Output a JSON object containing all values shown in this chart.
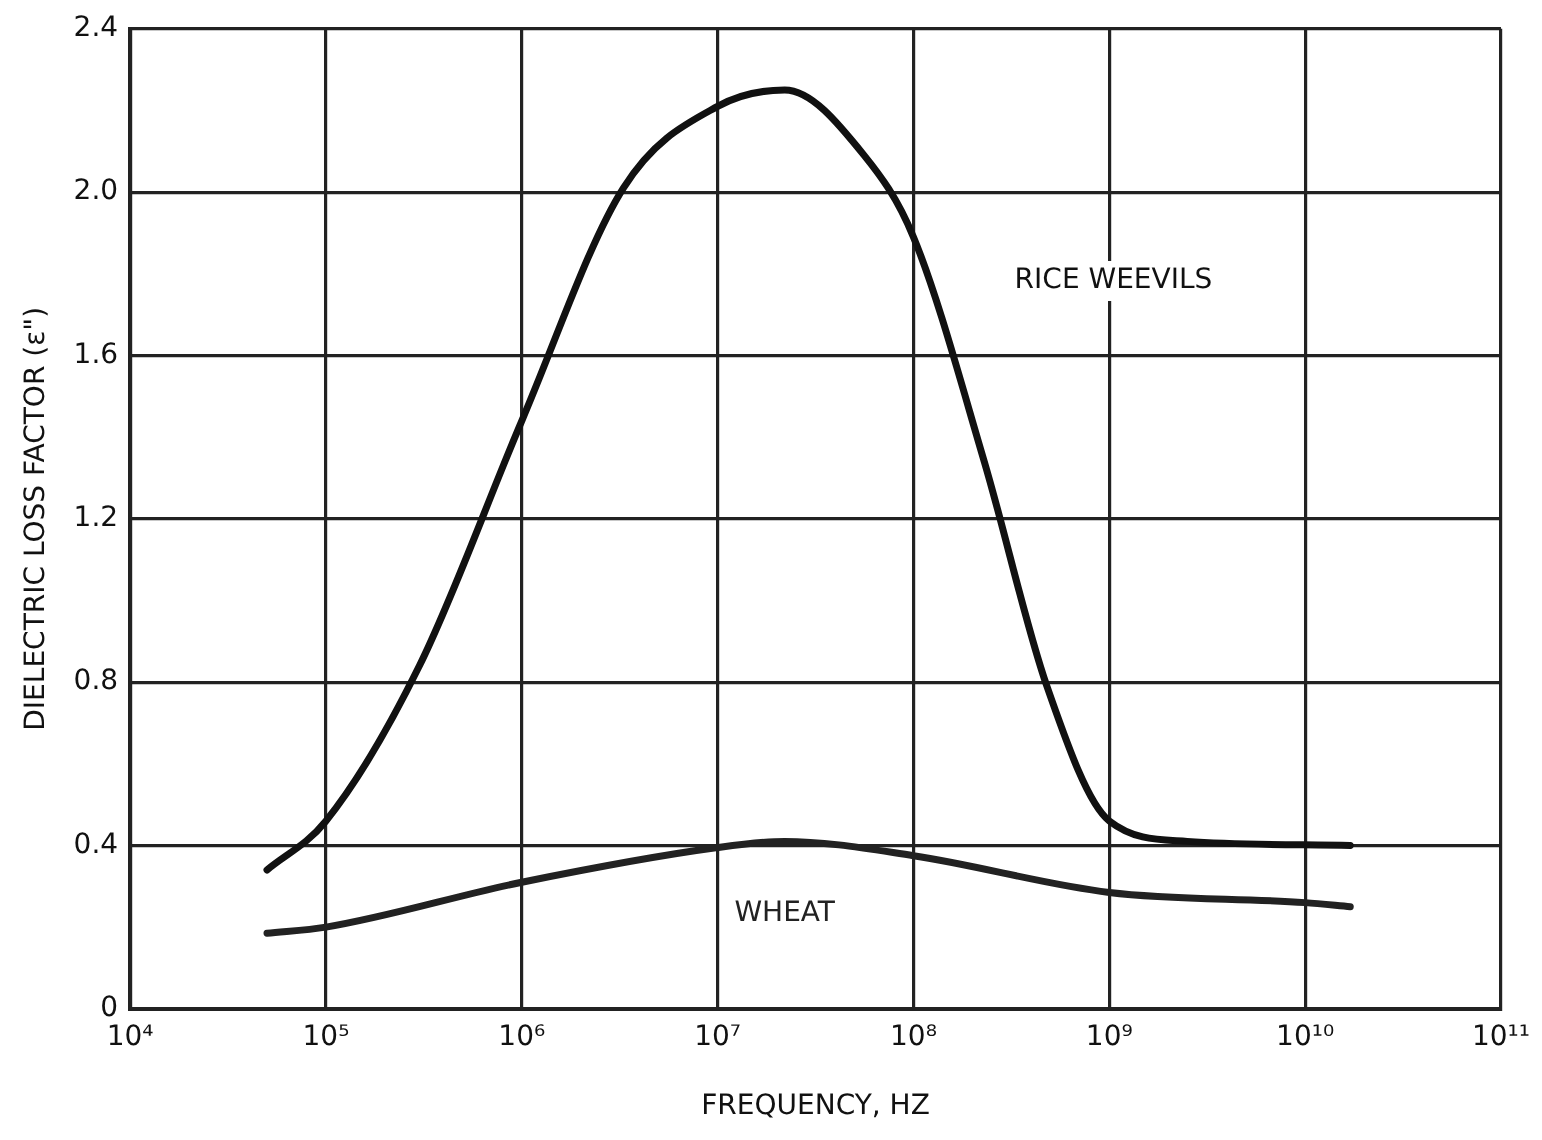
{
  "chart_data": {
    "type": "line",
    "xlabel": "FREQUENCY, HZ",
    "ylabel": "DIELECTRIC LOSS FACTOR (ε\")",
    "log": "x",
    "grid": true,
    "legend": false,
    "marker": "none",
    "line_style": "solid",
    "xlim": [
      10000,
      100000000000
    ],
    "ylim": [
      0,
      2.4
    ],
    "xticks": [
      {
        "value": 10000,
        "label": "10⁴"
      },
      {
        "value": 100000,
        "label": "10⁵"
      },
      {
        "value": 1000000,
        "label": "10⁶"
      },
      {
        "value": 10000000,
        "label": "10⁷"
      },
      {
        "value": 100000000,
        "label": "10⁸"
      },
      {
        "value": 1000000000,
        "label": "10⁹"
      },
      {
        "value": 10000000000,
        "label": "10¹⁰"
      },
      {
        "value": 100000000000,
        "label": "10¹¹"
      }
    ],
    "yticks": [
      {
        "value": 0,
        "label": "0"
      },
      {
        "value": 0.4,
        "label": "0.4"
      },
      {
        "value": 0.8,
        "label": "0.8"
      },
      {
        "value": 1.2,
        "label": "1.2"
      },
      {
        "value": 1.6,
        "label": "1.6"
      },
      {
        "value": 2.0,
        "label": "2.0"
      },
      {
        "value": 2.4,
        "label": "2.4"
      }
    ],
    "series": [
      {
        "name": "RICE WEEVILS",
        "color": "#111111",
        "x": [
          50000,
          100000,
          300000,
          1000000,
          3300000,
          10000000,
          22000000,
          56000000,
          100000000,
          230000000,
          480000000,
          1000000000,
          2500000000,
          17000000000
        ],
        "values": [
          0.34,
          0.46,
          0.84,
          1.44,
          2.01,
          2.21,
          2.25,
          2.09,
          1.89,
          1.34,
          0.79,
          0.46,
          0.41,
          0.4
        ]
      },
      {
        "name": "WHEAT",
        "color": "#222222",
        "x": [
          50000,
          100000,
          1000000,
          10000000,
          22000000,
          100000000,
          1000000000,
          10000000000,
          17000000000
        ],
        "values": [
          0.185,
          0.2,
          0.31,
          0.395,
          0.41,
          0.375,
          0.285,
          0.26,
          0.25
        ]
      }
    ]
  }
}
